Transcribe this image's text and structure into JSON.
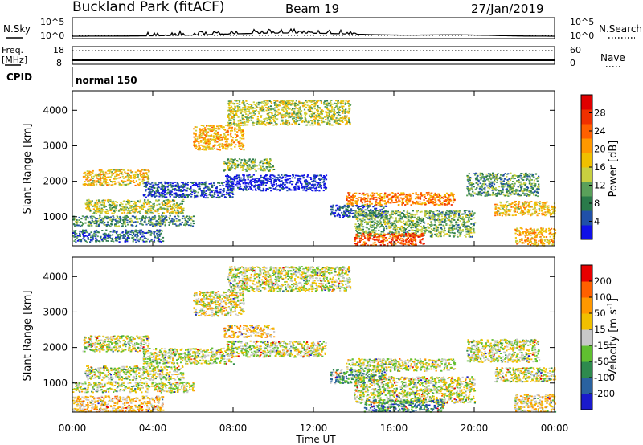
{
  "header": {
    "station": "Buckland Park (fitACF)",
    "beam": "Beam 19",
    "date": "27/Jan/2019"
  },
  "top_strip": {
    "left_label": "N.Sky",
    "right_label": "N.Search",
    "left_ticks": [
      "10^5",
      "10^0"
    ],
    "right_ticks": [
      "10^5",
      "10^0"
    ]
  },
  "freq_strip": {
    "left_label_1": "Freq.",
    "left_label_2": "[MHz]",
    "left_ticks": [
      "18",
      "8"
    ],
    "right_label": "Nave",
    "right_ticks": [
      "60",
      "0"
    ]
  },
  "cpid": {
    "label": "CPID",
    "value": "normal 150"
  },
  "x_axis": {
    "label": "Time UT",
    "ticks": [
      "00:00",
      "04:00",
      "08:00",
      "12:00",
      "16:00",
      "20:00",
      "00:00"
    ]
  },
  "chart_data": [
    {
      "type": "heatmap",
      "title": "",
      "xlabel": "Time UT",
      "ylabel": "Slant Range [km]",
      "xlim": [
        0,
        24
      ],
      "ylim": [
        180,
        4550
      ],
      "y_ticks": [
        "1000",
        "2000",
        "3000",
        "4000"
      ],
      "colorbar": {
        "label": "Power [dB]",
        "ticks": [
          "4",
          "8",
          "12",
          "16",
          "20",
          "24",
          "28"
        ],
        "colors": [
          "#1010e8",
          "#2050a8",
          "#2a7a4a",
          "#5aa05a",
          "#c8d040",
          "#f0c000",
          "#ff9800",
          "#ff6000",
          "#f03000",
          "#e00000"
        ]
      },
      "scatter_bands": [
        {
          "t0": 0.0,
          "t1": 6.0,
          "r0": 750,
          "r1": 1050,
          "level": 0.72
        },
        {
          "t0": 0.0,
          "t1": 4.5,
          "r0": 300,
          "r1": 650,
          "level": 0.8
        },
        {
          "t0": 0.6,
          "t1": 5.5,
          "r0": 1100,
          "r1": 1500,
          "level": 0.55
        },
        {
          "t0": 0.5,
          "t1": 3.8,
          "r0": 1900,
          "r1": 2350,
          "level": 0.45
        },
        {
          "t0": 3.5,
          "t1": 8.0,
          "r0": 1550,
          "r1": 2000,
          "level": 0.85
        },
        {
          "t0": 7.6,
          "t1": 12.6,
          "r0": 1750,
          "r1": 2200,
          "level": 0.95
        },
        {
          "t0": 7.5,
          "t1": 10.0,
          "r0": 2300,
          "r1": 2650,
          "level": 0.6
        },
        {
          "t0": 6.0,
          "t1": 8.5,
          "r0": 2900,
          "r1": 3600,
          "level": 0.4
        },
        {
          "t0": 7.7,
          "t1": 13.8,
          "r0": 3600,
          "r1": 4300,
          "level": 0.55
        },
        {
          "t0": 12.8,
          "t1": 15.6,
          "r0": 1000,
          "r1": 1350,
          "level": 0.85
        },
        {
          "t0": 14.0,
          "t1": 20.0,
          "r0": 450,
          "r1": 1200,
          "level": 0.65
        },
        {
          "t0": 13.6,
          "t1": 19.0,
          "r0": 1350,
          "r1": 1700,
          "level": 0.3
        },
        {
          "t0": 19.6,
          "t1": 23.2,
          "r0": 1600,
          "r1": 2250,
          "level": 0.7
        },
        {
          "t0": 21.0,
          "t1": 24.0,
          "r0": 1050,
          "r1": 1450,
          "level": 0.45
        },
        {
          "t0": 14.0,
          "t1": 17.5,
          "r0": 200,
          "r1": 550,
          "level": 0.2
        },
        {
          "t0": 22.0,
          "t1": 24.0,
          "r0": 200,
          "r1": 700,
          "level": 0.4
        }
      ]
    },
    {
      "type": "heatmap",
      "title": "",
      "xlabel": "Time UT",
      "ylabel": "Slant Range [km]",
      "xlim": [
        0,
        24
      ],
      "ylim": [
        180,
        4550
      ],
      "y_ticks": [
        "1000",
        "2000",
        "3000",
        "4000"
      ],
      "colorbar": {
        "label": "Velocity [m s^-1]",
        "ticks": [
          "200",
          "100",
          "50",
          "15",
          "-15",
          "-50",
          "-100",
          "-200"
        ],
        "colors": [
          "#1a1acc",
          "#2a62a0",
          "#2e8a4e",
          "#60c030",
          "#c8c8c8",
          "#f0c000",
          "#ff9800",
          "#ff6000",
          "#e80000"
        ]
      },
      "scatter_bands": [
        {
          "t0": 0.0,
          "t1": 6.0,
          "r0": 750,
          "r1": 1050,
          "level": 0.5
        },
        {
          "t0": 0.0,
          "t1": 4.5,
          "r0": 200,
          "r1": 650,
          "level": 0.62
        },
        {
          "t0": 0.6,
          "t1": 5.5,
          "r0": 1100,
          "r1": 1500,
          "level": 0.48
        },
        {
          "t0": 0.5,
          "t1": 3.8,
          "r0": 1900,
          "r1": 2350,
          "level": 0.5
        },
        {
          "t0": 3.5,
          "t1": 8.0,
          "r0": 1550,
          "r1": 2000,
          "level": 0.5
        },
        {
          "t0": 7.6,
          "t1": 12.6,
          "r0": 1750,
          "r1": 2200,
          "level": 0.5
        },
        {
          "t0": 7.5,
          "t1": 10.0,
          "r0": 2300,
          "r1": 2650,
          "level": 0.62
        },
        {
          "t0": 6.0,
          "t1": 8.5,
          "r0": 2900,
          "r1": 3600,
          "level": 0.55
        },
        {
          "t0": 7.7,
          "t1": 13.8,
          "r0": 3600,
          "r1": 4300,
          "level": 0.5
        },
        {
          "t0": 12.8,
          "t1": 15.6,
          "r0": 1000,
          "r1": 1400,
          "level": 0.33
        },
        {
          "t0": 14.0,
          "t1": 20.0,
          "r0": 450,
          "r1": 1200,
          "level": 0.5
        },
        {
          "t0": 13.6,
          "t1": 19.0,
          "r0": 1350,
          "r1": 1700,
          "level": 0.5
        },
        {
          "t0": 19.6,
          "t1": 23.2,
          "r0": 1600,
          "r1": 2250,
          "level": 0.5
        },
        {
          "t0": 21.0,
          "t1": 24.0,
          "r0": 1050,
          "r1": 1450,
          "level": 0.5
        },
        {
          "t0": 14.5,
          "t1": 18.5,
          "r0": 200,
          "r1": 550,
          "level": 0.25
        },
        {
          "t0": 22.0,
          "t1": 24.0,
          "r0": 200,
          "r1": 700,
          "level": 0.6
        }
      ]
    }
  ]
}
